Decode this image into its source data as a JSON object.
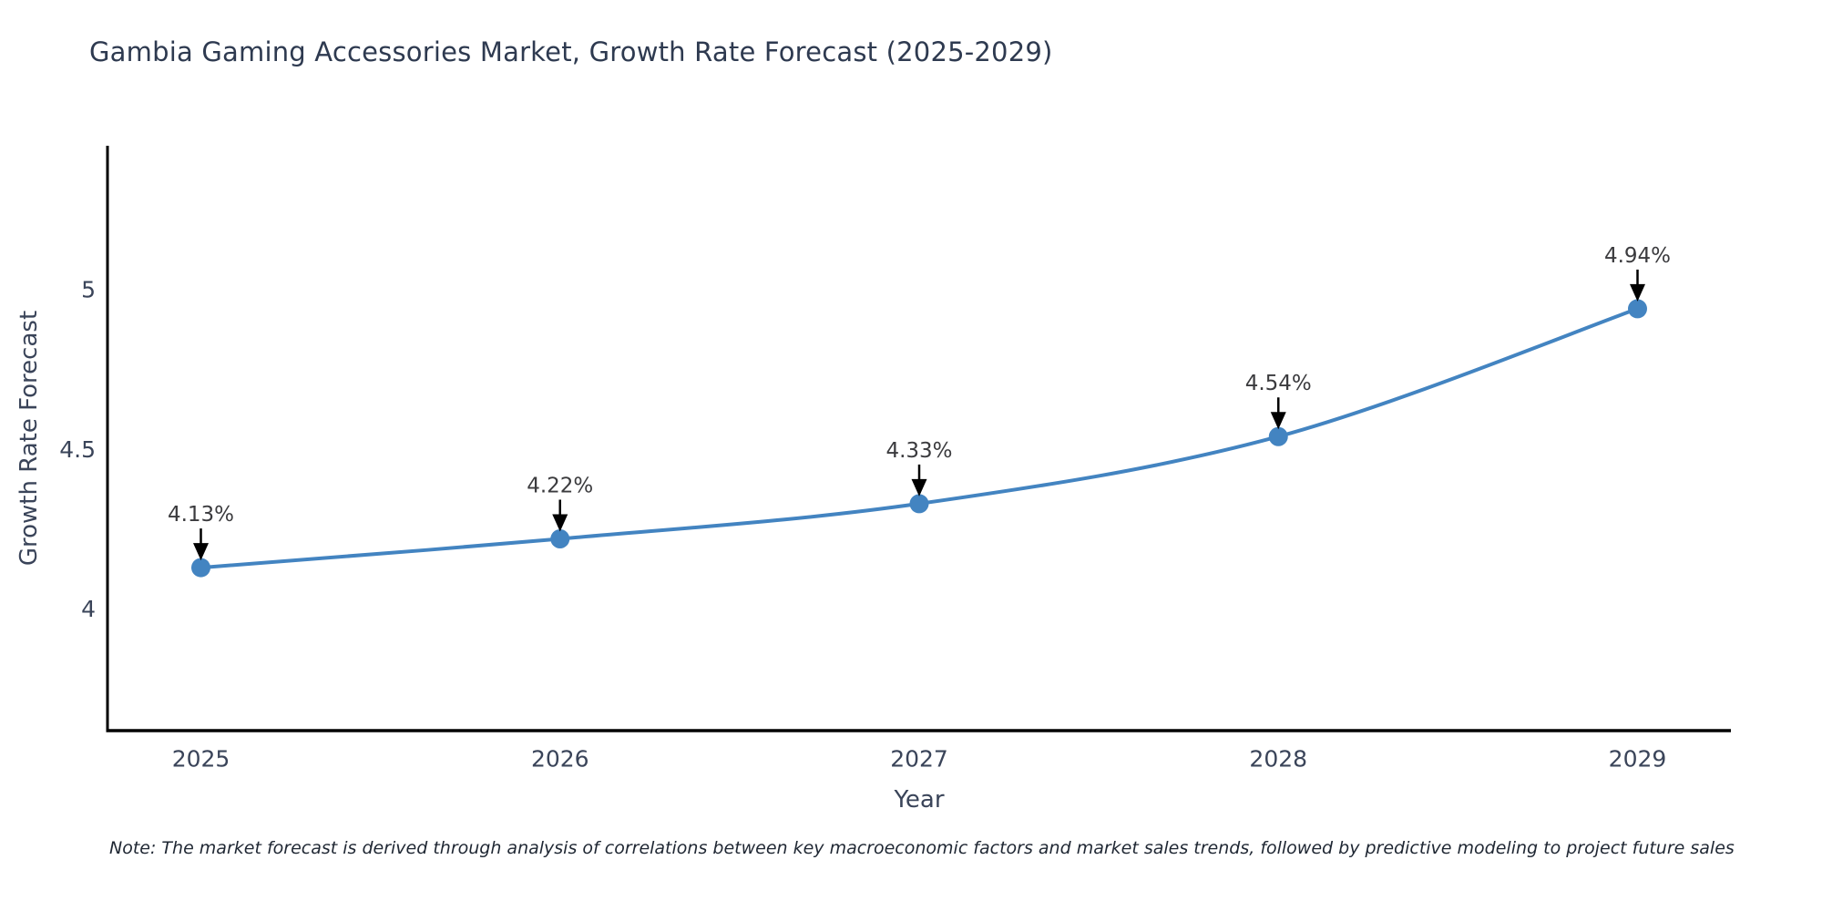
{
  "page": {
    "title": "Gambia Gaming Accessories Market, Growth Rate Forecast (2025-2029)",
    "note": "Note: The market forecast is derived through analysis of correlations between key macroeconomic factors and market sales trends, followed by predictive modeling to project future sales"
  },
  "chart_data": {
    "type": "line",
    "title": "Gambia Gaming Accessories Market, Growth Rate Forecast (2025-2029)",
    "xlabel": "Year",
    "ylabel": "Growth Rate Forecast",
    "x": [
      2025,
      2026,
      2027,
      2028,
      2029
    ],
    "xtick_labels": [
      "2025",
      "2026",
      "2027",
      "2028",
      "2029"
    ],
    "series": [
      {
        "name": "Growth Rate Forecast",
        "values": [
          4.13,
          4.22,
          4.33,
          4.54,
          4.94
        ]
      }
    ],
    "point_labels": [
      "4.13%",
      "4.22%",
      "4.33%",
      "4.54%",
      "4.94%"
    ],
    "yticks": [
      4,
      4.5,
      5
    ],
    "ytick_labels": [
      "4",
      "4.5",
      "5"
    ],
    "xlim": [
      2024.74,
      2029.26
    ],
    "ylim": [
      3.62,
      5.45
    ],
    "grid": false,
    "legend": "none",
    "marker": "circle",
    "annotations": "value labels with downward black arrows above each point",
    "colors": {
      "line": "#4384c1",
      "marker": "#4384c1",
      "spine": "#000000",
      "arrow": "#000000",
      "title_text": "#2e3a50",
      "tick_text": "#3a4459",
      "axis_label_text": "#3a4459",
      "annotation_text": "#3b3b3e",
      "note_text": "#1f2733",
      "background": "#ffffff"
    }
  }
}
